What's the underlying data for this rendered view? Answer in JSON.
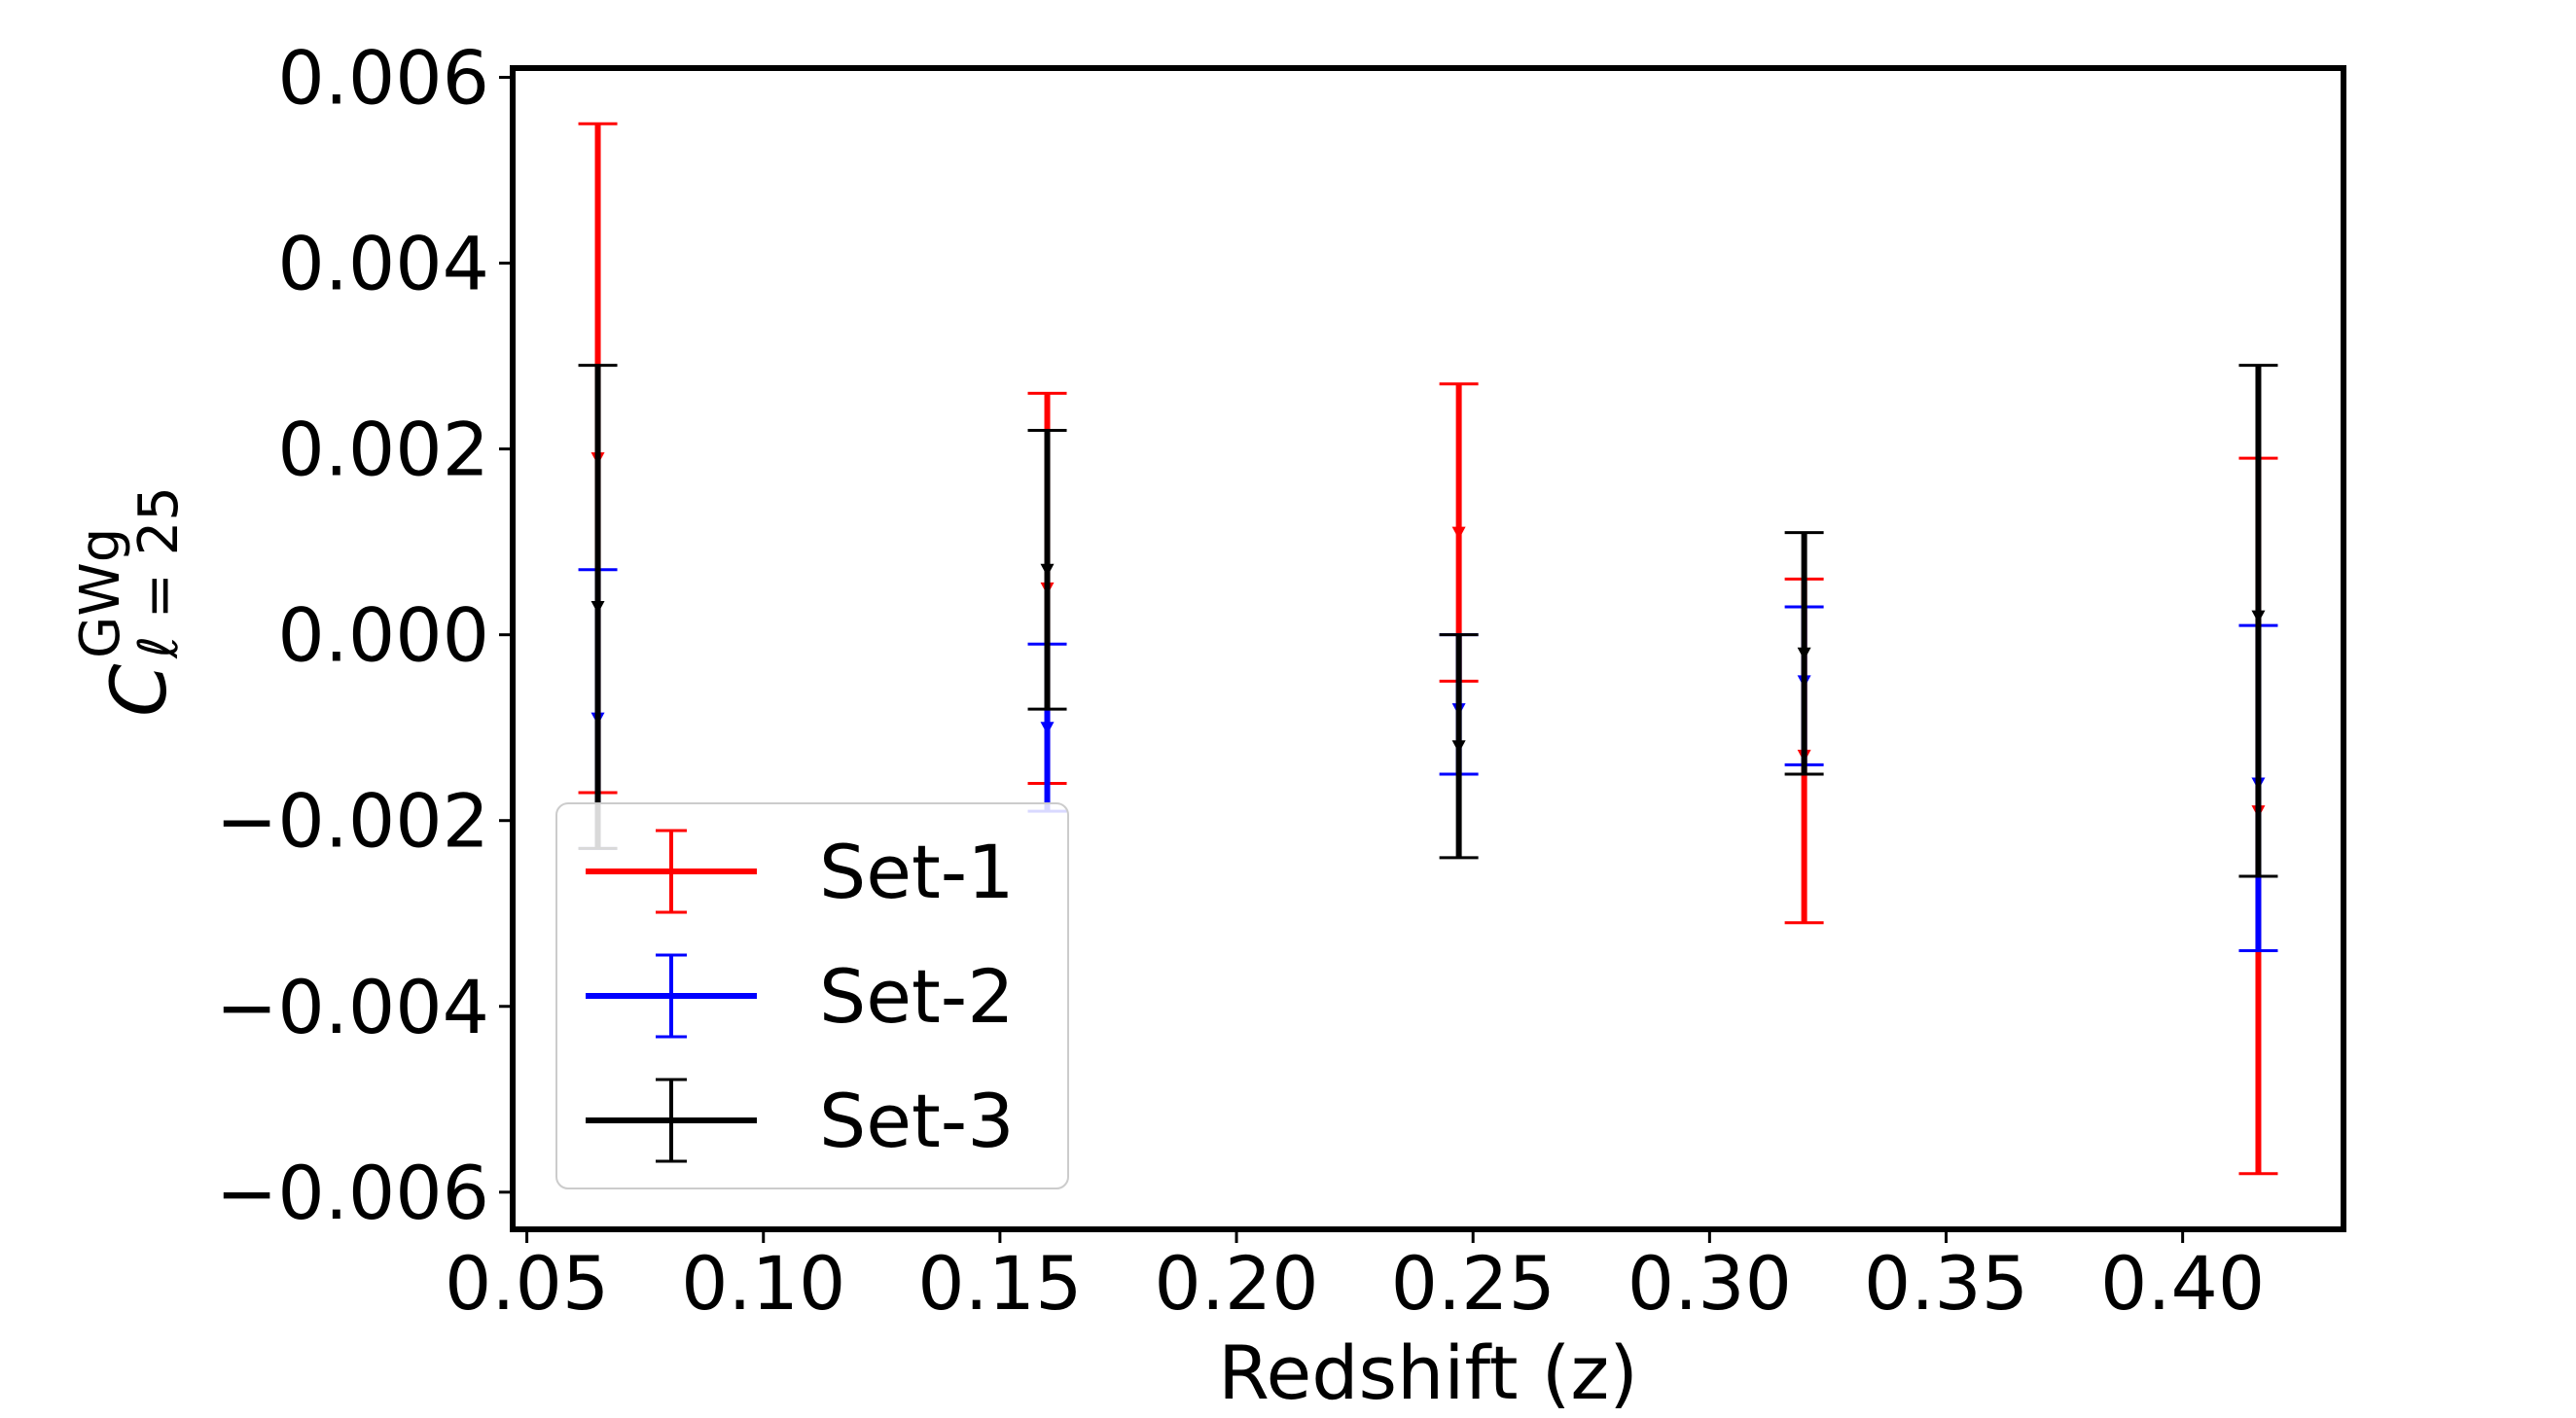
{
  "chart_data": {
    "type": "scatter",
    "xlabel": "Redshift (z)",
    "ylabel": {
      "base": "C",
      "superscript": "GWg",
      "subscript": "ℓ = 25"
    },
    "xlim": [
      0.047,
      0.434
    ],
    "ylim": [
      -0.0064,
      0.0061
    ],
    "x_ticks": [
      0.05,
      0.1,
      0.15,
      0.2,
      0.25,
      0.3,
      0.35,
      0.4
    ],
    "x_tick_labels": [
      "0.05",
      "0.10",
      "0.15",
      "0.20",
      "0.25",
      "0.30",
      "0.35",
      "0.40"
    ],
    "y_ticks": [
      -0.006,
      -0.004,
      -0.002,
      0.0,
      0.002,
      0.004,
      0.006
    ],
    "y_tick_labels": [
      "−0.006",
      "−0.004",
      "−0.002",
      "0.000",
      "0.002",
      "0.004",
      "0.006"
    ],
    "grid": false,
    "legend_position": "lower-left",
    "series": [
      {
        "name": "Set-1",
        "color": "#ff0000",
        "x": [
          0.065,
          0.16,
          0.247,
          0.32,
          0.416
        ],
        "y": [
          0.0019,
          0.0005,
          0.0011,
          -0.0013,
          -0.0019
        ],
        "y_low": [
          -0.0017,
          -0.0016,
          -0.0005,
          -0.0031,
          -0.0058
        ],
        "y_high": [
          0.0055,
          0.0026,
          0.0027,
          0.0006,
          0.0019
        ]
      },
      {
        "name": "Set-2",
        "color": "#0000ff",
        "x": [
          0.065,
          0.16,
          0.247,
          0.32,
          0.416
        ],
        "y": [
          -0.0009,
          -0.001,
          -0.0008,
          -0.0005,
          -0.0016
        ],
        "y_low": [
          -0.0023,
          -0.0019,
          -0.0015,
          -0.0014,
          -0.0034
        ],
        "y_high": [
          0.0007,
          -0.0001,
          0.0,
          0.0003,
          0.0001
        ]
      },
      {
        "name": "Set-3",
        "color": "#000000",
        "x": [
          0.065,
          0.16,
          0.247,
          0.32,
          0.416
        ],
        "y": [
          0.0003,
          0.0007,
          -0.0012,
          -0.0002,
          0.0002
        ],
        "y_low": [
          -0.0023,
          -0.0008,
          -0.0024,
          -0.0015,
          -0.0026
        ],
        "y_high": [
          0.0029,
          0.0022,
          0.0,
          0.0011,
          0.0029
        ]
      }
    ]
  }
}
